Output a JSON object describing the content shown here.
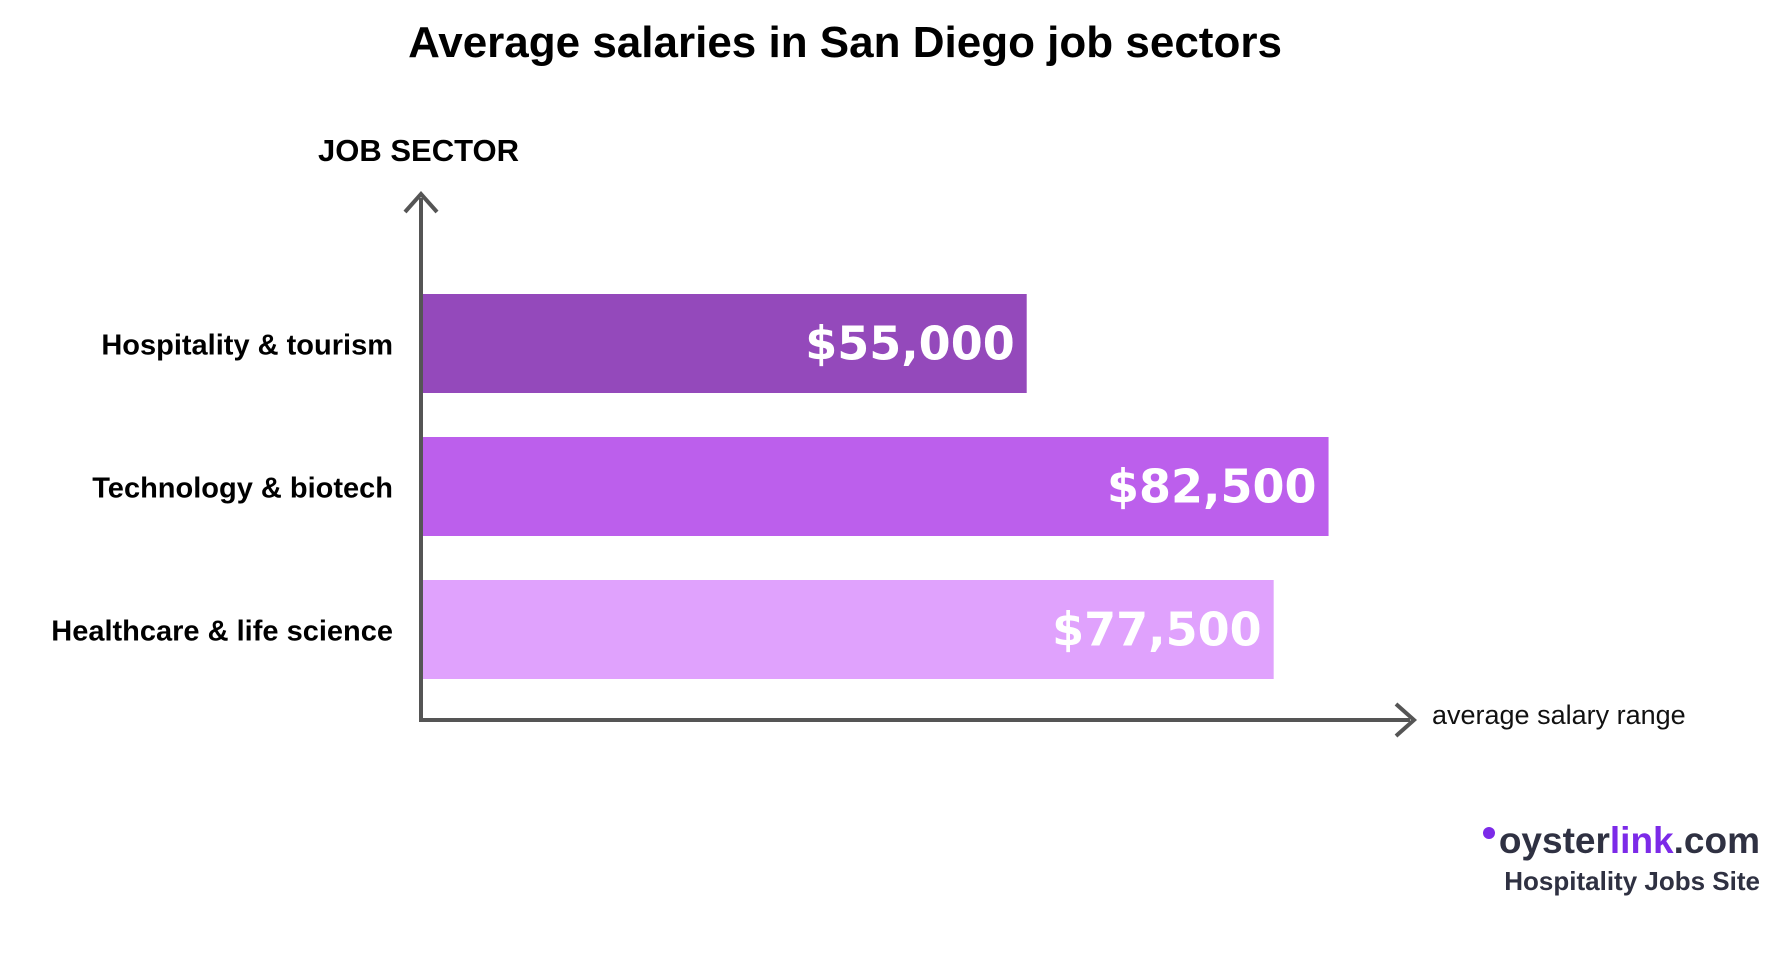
{
  "title": "Average salaries in San Diego job sectors",
  "chart_data": {
    "type": "bar",
    "orientation": "horizontal",
    "title": "Average salaries in San Diego job sectors",
    "ylabel": "JOB SECTOR",
    "xlabel": "average salary range",
    "categories": [
      "Hospitality & tourism",
      "Technology & biotech",
      "Healthcare & life science"
    ],
    "values": [
      55000,
      82500,
      77500
    ],
    "value_labels": [
      "$55,000",
      "$82,500",
      "$77,500"
    ],
    "bar_colors": [
      "#9449bb",
      "#bc5fec",
      "#e0a2fd"
    ],
    "xlim": [
      0,
      85000
    ],
    "grid": false
  },
  "logo": {
    "prefix": "oyster",
    "accent": "link",
    "suffix": ".com",
    "tagline": "Hospitality Jobs Site",
    "accent_color": "#7c2ae8"
  }
}
